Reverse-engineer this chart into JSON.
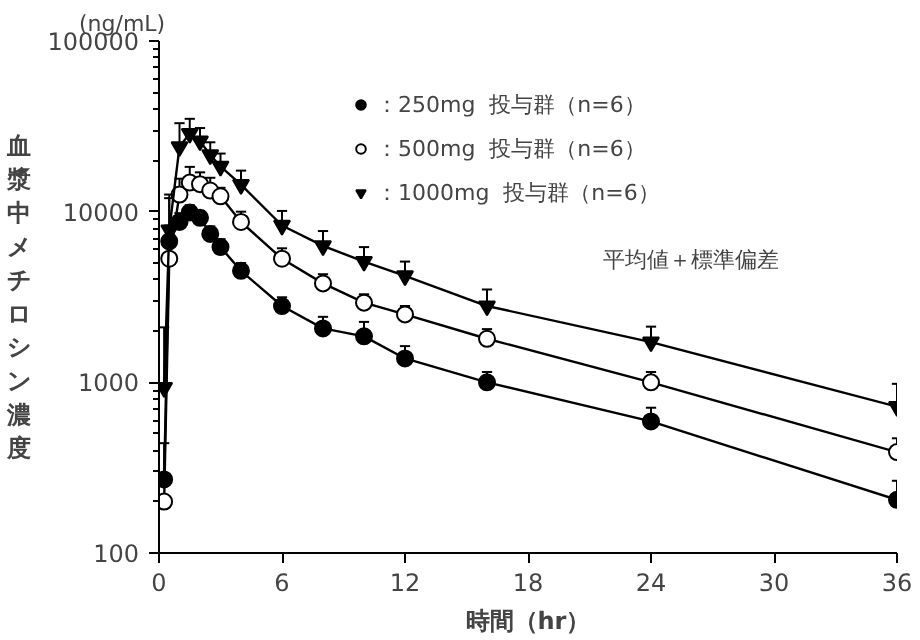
{
  "chart_data": {
    "type": "line",
    "xlabel": "時間（hr）",
    "ylabel": "血漿中メチロシン濃度",
    "annotations": [
      "(ng/mL)",
      "平均値＋標準偏差"
    ],
    "x": [
      0.25,
      0.5,
      1,
      1.5,
      2,
      2.5,
      3,
      4,
      6,
      8,
      10,
      12,
      16,
      24,
      36
    ],
    "series": [
      {
        "name": "：250mg  投与群（n=6）",
        "color": "#000000",
        "marker": "circle",
        "values": [
          270,
          6700,
          8700,
          9900,
          9200,
          7400,
          6200,
          4500,
          2800,
          2070,
          1860,
          1380,
          1000,
          590,
          205
        ],
        "errors": [
          [
            270,
            440
          ],
          [
            6700,
            8300
          ],
          [
            8700,
            9800
          ],
          [
            9900,
            10900
          ],
          [
            9200,
            10100
          ],
          [
            7400,
            8200
          ],
          [
            6200,
            6900
          ],
          [
            4500,
            5000
          ],
          [
            2800,
            3150
          ],
          [
            2070,
            2420
          ],
          [
            1860,
            2260
          ],
          [
            1380,
            1630
          ],
          [
            1000,
            1150
          ],
          [
            590,
            710
          ],
          [
            205,
            265
          ]
        ]
      },
      {
        "name": "：500mg  投与群（n=6）",
        "color": "#ffffff",
        "marker": "circle",
        "values": [
          200,
          5300,
          12600,
          14800,
          14500,
          13300,
          12300,
          8700,
          5300,
          3800,
          2930,
          2500,
          1800,
          1000,
          390
        ],
        "errors": [
          null,
          [
            5300,
            12000
          ],
          [
            12600,
            15600
          ],
          [
            14800,
            18300
          ],
          [
            14500,
            17000
          ],
          [
            13300,
            15800
          ],
          [
            12300,
            13800
          ],
          [
            8700,
            10000
          ],
          [
            5300,
            6100
          ],
          [
            3800,
            4300
          ],
          [
            2930,
            3280
          ],
          [
            2500,
            2800
          ],
          [
            1800,
            2050
          ],
          [
            1000,
            1150
          ],
          [
            390,
            470
          ]
        ]
      },
      {
        "name": "：1000mg  投与群（n=6）",
        "color": "#000000",
        "marker": "triangle",
        "values": [
          930,
          7800,
          24000,
          28700,
          25900,
          21500,
          18400,
          14400,
          8300,
          6300,
          5100,
          4200,
          2800,
          1720,
          720
        ],
        "errors": [
          [
            930,
            2100
          ],
          [
            7800,
            12600
          ],
          [
            24000,
            33000
          ],
          [
            28700,
            35000
          ],
          [
            25900,
            30900
          ],
          [
            21500,
            25500
          ],
          [
            18400,
            21900
          ],
          [
            14400,
            17400
          ],
          [
            8300,
            10100
          ],
          [
            6300,
            7700
          ],
          [
            5100,
            6200
          ],
          [
            4200,
            5100
          ],
          [
            2800,
            3500
          ],
          [
            1720,
            2120
          ],
          [
            720,
            980
          ]
        ]
      }
    ],
    "xlim": [
      0,
      36
    ],
    "xticks": [
      0,
      6,
      12,
      18,
      24,
      30,
      36
    ],
    "ylim": [
      100,
      100000
    ],
    "yticks": [
      100,
      1000,
      10000,
      100000
    ],
    "log": "y",
    "grid": false,
    "legend": "top right",
    "line_style": "solid"
  }
}
